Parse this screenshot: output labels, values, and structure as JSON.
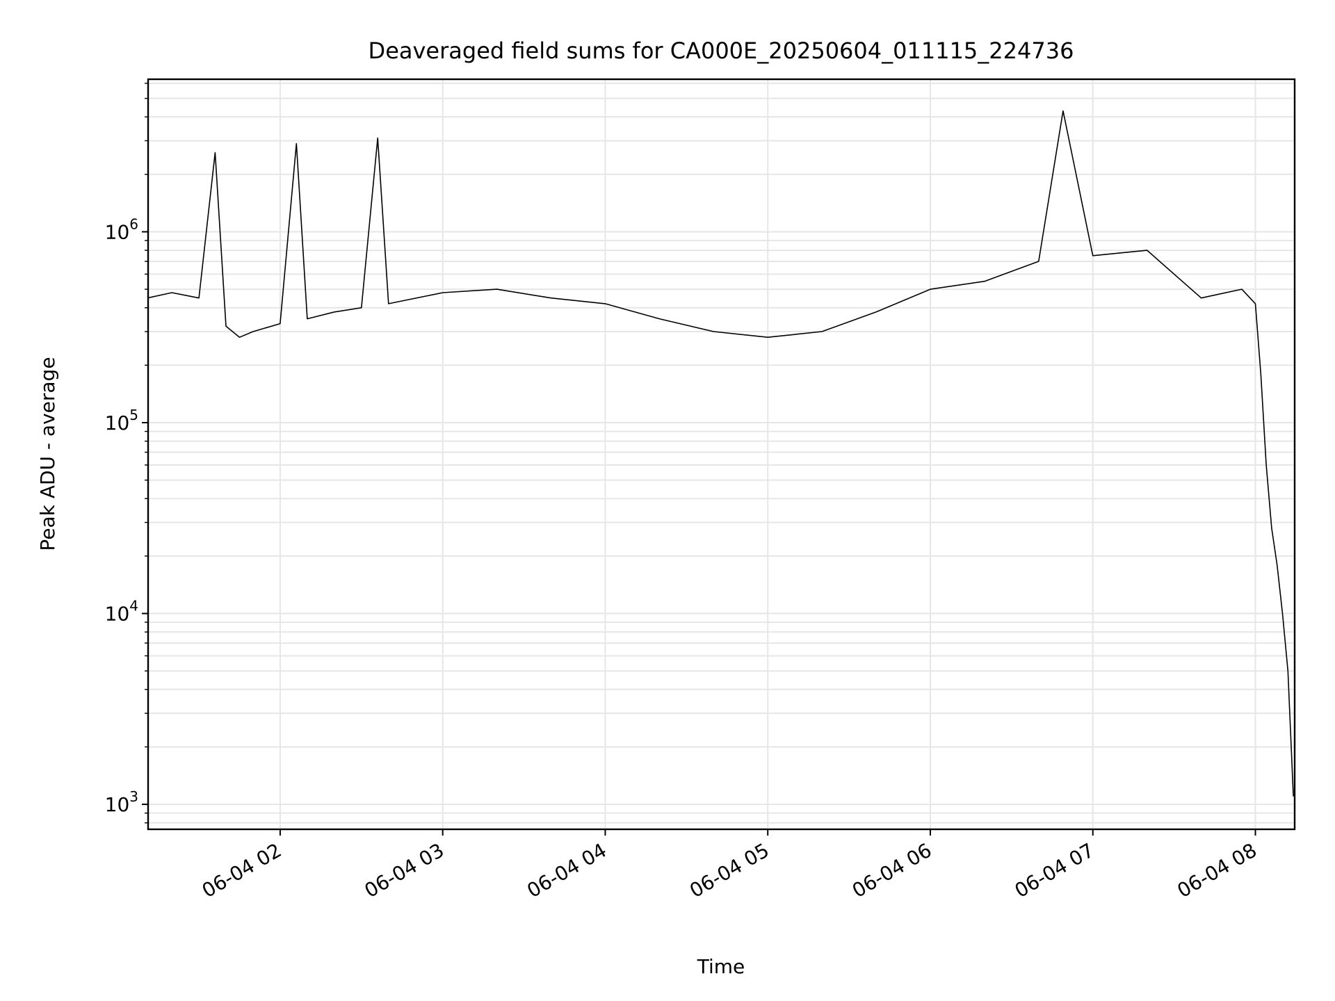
{
  "chart_data": {
    "type": "line",
    "title": "Deaveraged field sums for CA000E_20250604_011115_224736",
    "xlabel": "Time",
    "ylabel": "Peak ADU - average",
    "yscale": "log",
    "xlim": [
      "06-04 01:11:15",
      "06-04 08:14:30"
    ],
    "ylim": [
      740,
      6300000
    ],
    "grid": true,
    "line_color": "#000000",
    "grid_color": "#e6e6e6",
    "x_ticks": [
      {
        "label": "06-04 02",
        "value": "06-04 02:00"
      },
      {
        "label": "06-04 03",
        "value": "06-04 03:00"
      },
      {
        "label": "06-04 04",
        "value": "06-04 04:00"
      },
      {
        "label": "06-04 05",
        "value": "06-04 05:00"
      },
      {
        "label": "06-04 06",
        "value": "06-04 06:00"
      },
      {
        "label": "06-04 07",
        "value": "06-04 07:00"
      },
      {
        "label": "06-04 08",
        "value": "06-04 08:00"
      }
    ],
    "y_ticks": [
      {
        "base": "10",
        "exp": "3",
        "value": 1000
      },
      {
        "base": "10",
        "exp": "4",
        "value": 10000
      },
      {
        "base": "10",
        "exp": "5",
        "value": 100000
      },
      {
        "base": "10",
        "exp": "6",
        "value": 1000000
      }
    ],
    "series": [
      {
        "x": [
          "06-04 01:11",
          "06-04 01:20",
          "06-04 01:30",
          "06-04 01:36",
          "06-04 01:40",
          "06-04 01:45",
          "06-04 01:50",
          "06-04 02:00",
          "06-04 02:06",
          "06-04 02:10",
          "06-04 02:20",
          "06-04 02:30",
          "06-04 02:36",
          "06-04 02:40",
          "06-04 03:00",
          "06-04 03:20",
          "06-04 03:40",
          "06-04 04:00",
          "06-04 04:20",
          "06-04 04:40",
          "06-04 05:00",
          "06-04 05:20",
          "06-04 05:40",
          "06-04 06:00",
          "06-04 06:20",
          "06-04 06:40",
          "06-04 06:49",
          "06-04 07:00",
          "06-04 07:20",
          "06-04 07:40",
          "06-04 07:55",
          "06-04 08:00",
          "06-04 08:02",
          "06-04 08:04",
          "06-04 08:06",
          "06-04 08:08",
          "06-04 08:10",
          "06-04 08:12",
          "06-04 08:14"
        ],
        "y": [
          450000,
          480000,
          450000,
          2600000,
          320000,
          280000,
          300000,
          330000,
          2900000,
          350000,
          380000,
          400000,
          3100000,
          420000,
          480000,
          500000,
          450000,
          420000,
          350000,
          300000,
          280000,
          300000,
          380000,
          500000,
          550000,
          700000,
          4300000,
          750000,
          800000,
          450000,
          500000,
          420000,
          180000,
          60000,
          28000,
          18000,
          10000,
          5000,
          1100
        ]
      }
    ]
  }
}
